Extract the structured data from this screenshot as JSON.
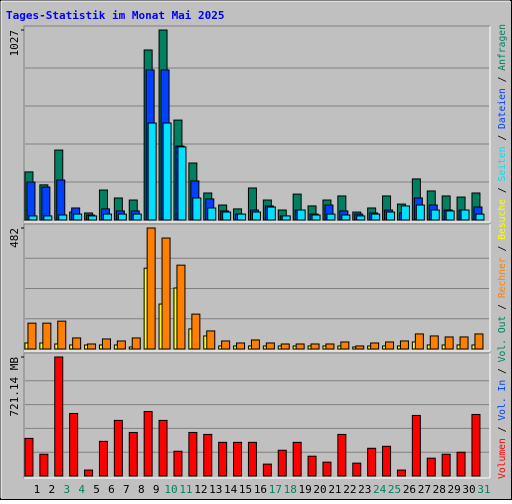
{
  "title": "Tages-Statistik im Monat Mai 2025",
  "separator": " / ",
  "chart_data": [
    {
      "type": "bar",
      "ylim": [
        0,
        1027
      ],
      "yticks": [
        1027
      ],
      "series": [
        {
          "name": "Anfragen",
          "color": "#008060",
          "values": [
            260,
            190,
            378,
            43,
            38,
            162,
            119,
            108,
            919,
            1027,
            540,
            308,
            146,
            81,
            60,
            173,
            108,
            54,
            140,
            76,
            108,
            130,
            43,
            65,
            130,
            86,
            222,
            157,
            130,
            124,
            146
          ]
        },
        {
          "name": "Dateien",
          "color": "#0040ff",
          "values": [
            205,
            178,
            216,
            65,
            27,
            60,
            49,
            49,
            811,
            811,
            400,
            211,
            114,
            49,
            32,
            54,
            76,
            22,
            54,
            32,
            81,
            49,
            32,
            38,
            54,
            38,
            119,
            81,
            54,
            54,
            70
          ]
        },
        {
          "name": "Seiten",
          "color": "#00e0ff",
          "values": [
            22,
            22,
            27,
            32,
            22,
            32,
            32,
            32,
            524,
            524,
            395,
            119,
            65,
            43,
            32,
            43,
            70,
            22,
            54,
            27,
            32,
            27,
            22,
            32,
            43,
            76,
            81,
            54,
            49,
            54,
            32
          ]
        }
      ]
    },
    {
      "type": "bar",
      "ylim": [
        0,
        482
      ],
      "yticks": [
        482
      ],
      "series": [
        {
          "name": "Besuche",
          "color": "#ffff00",
          "values": [
            24,
            24,
            20,
            16,
            16,
            16,
            16,
            8,
            322,
            179,
            243,
            80,
            52,
            12,
            12,
            12,
            12,
            12,
            12,
            12,
            12,
            12,
            8,
            12,
            12,
            12,
            28,
            16,
            16,
            16,
            16
          ]
        },
        {
          "name": "Rechner",
          "color": "#ff8000",
          "values": [
            103,
            103,
            111,
            44,
            20,
            40,
            32,
            44,
            482,
            442,
            334,
            139,
            72,
            32,
            24,
            36,
            24,
            20,
            20,
            20,
            20,
            28,
            12,
            24,
            28,
            32,
            60,
            52,
            48,
            48,
            60
          ]
        }
      ]
    },
    {
      "type": "bar",
      "ylim": [
        0,
        721.14
      ],
      "yticks": [
        {
          "value": 721.14,
          "label": "721.14 MB"
        }
      ],
      "categories": [
        "1",
        "2",
        "3",
        "4",
        "5",
        "6",
        "7",
        "8",
        "9",
        "10",
        "11",
        "12",
        "13",
        "14",
        "15",
        "16",
        "17",
        "18",
        "19",
        "20",
        "21",
        "22",
        "23",
        "24",
        "25",
        "26",
        "27",
        "28",
        "29",
        "30",
        "31"
      ],
      "category_colors": [
        "#000000",
        "#000000",
        "#008060",
        "#008060",
        "#000000",
        "#000000",
        "#000000",
        "#000000",
        "#000000",
        "#008060",
        "#008060",
        "#000000",
        "#000000",
        "#000000",
        "#000000",
        "#000000",
        "#008060",
        "#008060",
        "#000000",
        "#000000",
        "#000000",
        "#000000",
        "#000000",
        "#008060",
        "#008060",
        "#000000",
        "#000000",
        "#000000",
        "#000000",
        "#000000",
        "#008060"
      ],
      "series": [
        {
          "name": "Volumen",
          "color": "#ff0000",
          "values": [
            228,
            132,
            721.14,
            379,
            36,
            210,
            337,
            264,
            391,
            337,
            150,
            264,
            252,
            204,
            204,
            204,
            72,
            156,
            204,
            120,
            84,
            252,
            78,
            168,
            180,
            36,
            367,
            108,
            132,
            144,
            373
          ]
        }
      ],
      "legend_extra": [
        {
          "text": "Vol. In",
          "color": "#0040ff"
        },
        {
          "text": "Vol. Out",
          "color": "#008060"
        }
      ]
    }
  ]
}
